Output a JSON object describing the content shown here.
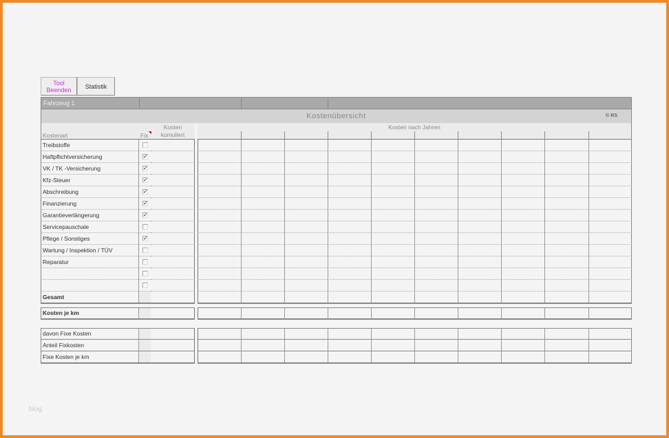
{
  "toolbar": {
    "tool_label": "Tool Beenden",
    "statistik_label": "Statistik",
    "tool_color": "#cc33cc"
  },
  "header": {
    "vehicle": "Fahrzeug 1",
    "title": "Kostenübersicht",
    "copyright": "© RS"
  },
  "columns": {
    "kostenart": "Kostenart",
    "fix": "Fix",
    "kosten_kumuliert": "Kosten kumuliert",
    "kosten_nach_jahren": "Kosten nach Jahren"
  },
  "rows": [
    {
      "label": "Treibstoffe",
      "fix": false
    },
    {
      "label": "Haftpflichtversicherung",
      "fix": true
    },
    {
      "label": "VK / TK -Versicherung",
      "fix": true
    },
    {
      "label": "Kfz-Steuer",
      "fix": true
    },
    {
      "label": "Abschreibung",
      "fix": true
    },
    {
      "label": "Finanzierung",
      "fix": true
    },
    {
      "label": "Garantieverlängerung",
      "fix": true
    },
    {
      "label": "Servicepauschale",
      "fix": false
    },
    {
      "label": "Pflege / Sonstiges",
      "fix": true
    },
    {
      "label": "Wartung / Inspektion / TÜV",
      "fix": false
    },
    {
      "label": "Reparatur",
      "fix": false
    },
    {
      "label": "",
      "fix": false
    },
    {
      "label": "",
      "fix": false
    }
  ],
  "summary": {
    "gesamt": "Gesamt",
    "kosten_je_km": "Kosten je km"
  },
  "fixed": [
    "davon Fixe Kosten",
    "Anteil Fixkosten",
    "Fixe Kosten je km"
  ],
  "watermark": "blog"
}
